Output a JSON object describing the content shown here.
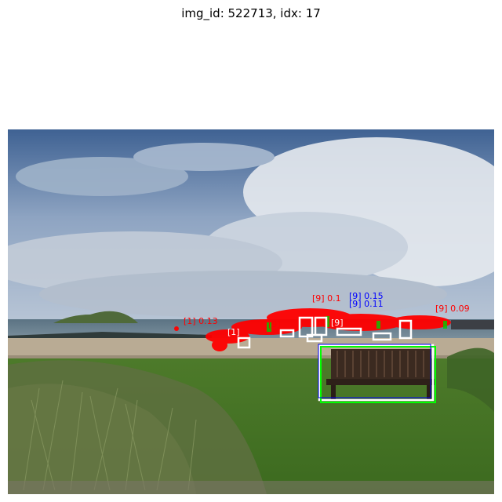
{
  "figure": {
    "title": "img_id: 522713, idx: 17"
  },
  "photo": {
    "subjects": [
      "sky",
      "clouds",
      "sea",
      "island",
      "beach",
      "grass",
      "bench"
    ]
  },
  "annotations": {
    "colors": {
      "pred": "#ff0000",
      "gt": "#ffffff",
      "match": "#00ff00",
      "alt": "#0000ff"
    },
    "labels": [
      {
        "text": "[9]  0.15",
        "color": "#0000ff"
      },
      {
        "text": "[9]  0.11",
        "color": "#0000ff"
      },
      {
        "text": "[9]  0.1",
        "color": "#ff0000"
      },
      {
        "text": "[1]  0.13",
        "color": "#ff0000"
      },
      {
        "text": "[9]  0.09",
        "color": "#ff0000"
      },
      {
        "text": "[9]",
        "color": "#ff0000"
      },
      {
        "text": "[9]",
        "color": "#ffffff"
      },
      {
        "text": "[1]",
        "color": "#ffffff"
      }
    ]
  }
}
